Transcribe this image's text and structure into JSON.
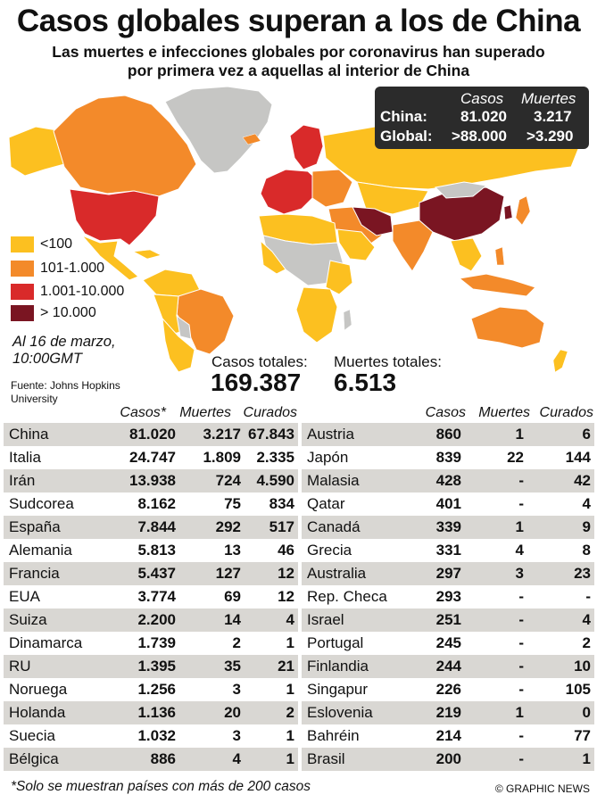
{
  "header": {
    "title": "Casos globales superan a los de China",
    "subtitle_line1": "Las muertes e infecciones globales por coronavirus han superado",
    "subtitle_line2": "por primera vez a aquellas al interior de China"
  },
  "infobox": {
    "col_cases": "Casos",
    "col_deaths": "Muertes",
    "china_label": "China:",
    "china_cases": "81.020",
    "china_deaths": "3.217",
    "global_label": "Global:",
    "global_cases": ">88.000",
    "global_deaths": ">3.290"
  },
  "legend": [
    {
      "label": "<100",
      "color": "#fcc020"
    },
    {
      "label": "101-1.000",
      "color": "#f38a2a"
    },
    {
      "label": "1.001-10.000",
      "color": "#d92a2a"
    },
    {
      "label": "> 10.000",
      "color": "#7a1522"
    }
  ],
  "no_data_color": "#c6c6c4",
  "date_line1": "Al 16 de marzo,",
  "date_line2": "10:00GMT",
  "source_line1": "Fuente: Johns Hopkins",
  "source_line2": "University",
  "totals": {
    "cases_label": "Casos totales:",
    "cases_value": "169.387",
    "deaths_label": "Muertes totales:",
    "deaths_value": "6.513"
  },
  "table_headers": {
    "left_cases": "Casos*",
    "left_deaths": "Muertes",
    "left_cured": "Curados",
    "right_cases": "Casos",
    "right_deaths": "Muertes",
    "right_cured": "Curados"
  },
  "left_rows": [
    {
      "country": "China",
      "cases": "81.020",
      "deaths": "3.217",
      "cured": "67.843"
    },
    {
      "country": "Italia",
      "cases": "24.747",
      "deaths": "1.809",
      "cured": "2.335"
    },
    {
      "country": "Irán",
      "cases": "13.938",
      "deaths": "724",
      "cured": "4.590"
    },
    {
      "country": "Sudcorea",
      "cases": "8.162",
      "deaths": "75",
      "cured": "834"
    },
    {
      "country": "España",
      "cases": "7.844",
      "deaths": "292",
      "cured": "517"
    },
    {
      "country": "Alemania",
      "cases": "5.813",
      "deaths": "13",
      "cured": "46"
    },
    {
      "country": "Francia",
      "cases": "5.437",
      "deaths": "127",
      "cured": "12"
    },
    {
      "country": "EUA",
      "cases": "3.774",
      "deaths": "69",
      "cured": "12"
    },
    {
      "country": "Suiza",
      "cases": "2.200",
      "deaths": "14",
      "cured": "4"
    },
    {
      "country": "Dinamarca",
      "cases": "1.739",
      "deaths": "2",
      "cured": "1"
    },
    {
      "country": "RU",
      "cases": "1.395",
      "deaths": "35",
      "cured": "21"
    },
    {
      "country": "Noruega",
      "cases": "1.256",
      "deaths": "3",
      "cured": "1"
    },
    {
      "country": "Holanda",
      "cases": "1.136",
      "deaths": "20",
      "cured": "2"
    },
    {
      "country": "Suecia",
      "cases": "1.032",
      "deaths": "3",
      "cured": "1"
    },
    {
      "country": "Bélgica",
      "cases": "886",
      "deaths": "4",
      "cured": "1"
    }
  ],
  "right_rows": [
    {
      "country": "Austria",
      "cases": "860",
      "deaths": "1",
      "cured": "6"
    },
    {
      "country": "Japón",
      "cases": "839",
      "deaths": "22",
      "cured": "144"
    },
    {
      "country": "Malasia",
      "cases": "428",
      "deaths": "-",
      "cured": "42"
    },
    {
      "country": "Qatar",
      "cases": "401",
      "deaths": "-",
      "cured": "4"
    },
    {
      "country": "Canadá",
      "cases": "339",
      "deaths": "1",
      "cured": "9"
    },
    {
      "country": "Grecia",
      "cases": "331",
      "deaths": "4",
      "cured": "8"
    },
    {
      "country": "Australia",
      "cases": "297",
      "deaths": "3",
      "cured": "23"
    },
    {
      "country": "Rep. Checa",
      "cases": "293",
      "deaths": "-",
      "cured": "-"
    },
    {
      "country": "Israel",
      "cases": "251",
      "deaths": "-",
      "cured": "4"
    },
    {
      "country": "Portugal",
      "cases": "245",
      "deaths": "-",
      "cured": "2"
    },
    {
      "country": "Finlandia",
      "cases": "244",
      "deaths": "-",
      "cured": "10"
    },
    {
      "country": "Singapur",
      "cases": "226",
      "deaths": "-",
      "cured": "105"
    },
    {
      "country": "Eslovenia",
      "cases": "219",
      "deaths": "1",
      "cured": "0"
    },
    {
      "country": "Bahréin",
      "cases": "214",
      "deaths": "-",
      "cured": "77"
    },
    {
      "country": "Brasil",
      "cases": "200",
      "deaths": "-",
      "cured": "1"
    }
  ],
  "footnote": "*Solo se muestran países con más de 200 casos",
  "credit": "© GRAPHIC NEWS"
}
